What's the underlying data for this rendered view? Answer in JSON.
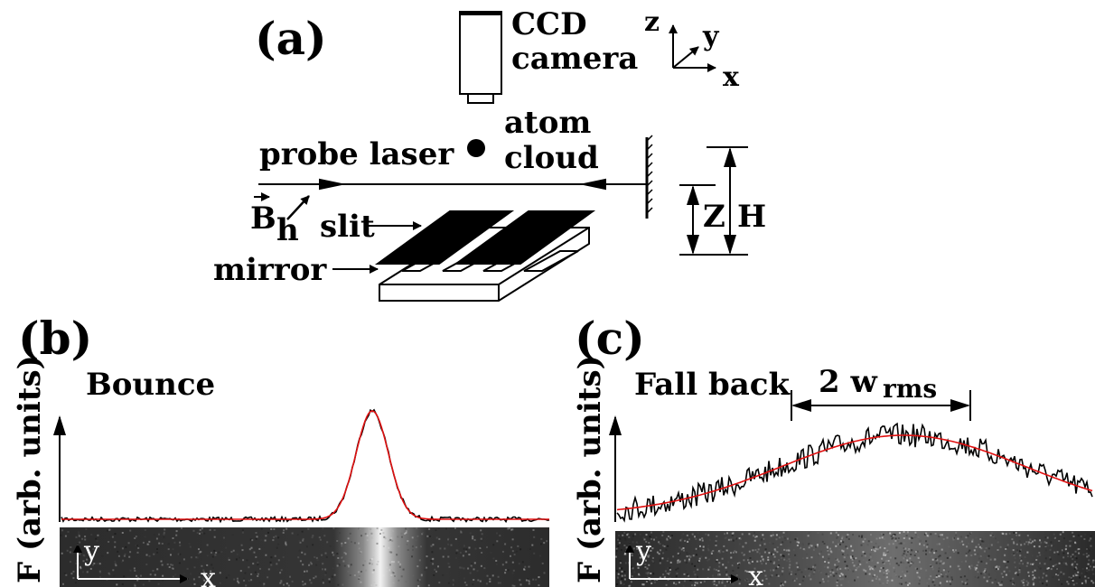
{
  "panel_a": {
    "label": "(a)",
    "ccd_line1": "CCD",
    "ccd_line2": "camera",
    "axis_z": "z",
    "axis_y": "y",
    "axis_x": "x",
    "atom_line1": "atom",
    "atom_line2": "cloud",
    "probe_laser": "probe laser",
    "field_symbol": "B",
    "field_subscript": "h",
    "slit": "slit",
    "mirror": "mirror",
    "dim_z": "Z",
    "dim_h": "H"
  },
  "panel_b": {
    "label": "(b)",
    "title": "Bounce",
    "ylabel": "F (arb. units)",
    "img_y": "y",
    "img_x": "x"
  },
  "panel_c": {
    "label": "(c)",
    "title": "Fall back",
    "ylabel": "F (arb. units)",
    "width_main": "2 w",
    "width_sub": "rms",
    "img_y": "y",
    "img_x": "x"
  },
  "colors": {
    "line": "#000000",
    "fit": "#e01010",
    "image_bg": "#3a3a3a"
  }
}
